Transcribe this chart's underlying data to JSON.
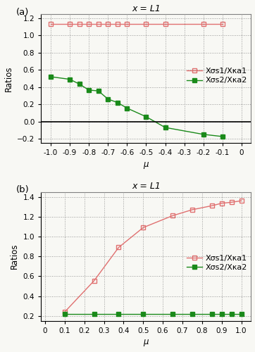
{
  "title": "x = L1",
  "legend_labels": [
    "Xσs1/Xκa1",
    "Xσs2/Xκa2"
  ],
  "ax1": {
    "mu": [
      -1.0,
      -0.9,
      -0.85,
      -0.8,
      -0.75,
      -0.7,
      -0.65,
      -0.6,
      -0.5,
      -0.4,
      -0.2,
      -0.1
    ],
    "red_y": [
      1.13,
      1.13,
      1.13,
      1.13,
      1.13,
      1.13,
      1.13,
      1.13,
      1.13,
      1.13,
      1.13,
      1.13
    ],
    "green_y": [
      0.52,
      0.49,
      0.435,
      0.365,
      0.355,
      0.26,
      0.22,
      0.155,
      0.055,
      -0.07,
      -0.15,
      -0.175
    ],
    "xlim": [
      -1.05,
      0.05
    ],
    "ylim": [
      -0.25,
      1.25
    ],
    "yticks": [
      -0.2,
      0.0,
      0.2,
      0.4,
      0.6,
      0.8,
      1.0,
      1.2
    ],
    "xticks": [
      -1.0,
      -0.9,
      -0.8,
      -0.7,
      -0.6,
      -0.5,
      -0.4,
      -0.3,
      -0.2,
      -0.1,
      0.0
    ]
  },
  "ax2": {
    "mu": [
      0.1,
      0.25,
      0.375,
      0.5,
      0.65,
      0.75,
      0.85,
      0.9,
      0.95,
      1.0
    ],
    "red_y": [
      0.24,
      0.555,
      0.89,
      1.09,
      1.21,
      1.27,
      1.31,
      1.335,
      1.345,
      1.36
    ],
    "green_y": [
      0.22,
      0.22,
      0.22,
      0.22,
      0.22,
      0.22,
      0.22,
      0.22,
      0.22,
      0.22
    ],
    "xlim": [
      -0.02,
      1.05
    ],
    "ylim": [
      0.15,
      1.45
    ],
    "yticks": [
      0.2,
      0.4,
      0.6,
      0.8,
      1.0,
      1.2,
      1.4
    ],
    "xticks": [
      0.0,
      0.1,
      0.2,
      0.3,
      0.4,
      0.5,
      0.6,
      0.7,
      0.8,
      0.9,
      1.0
    ]
  },
  "red_color": "#e07070",
  "green_color": "#1a8a1a",
  "bg_color": "#f8f8f4",
  "title_fontsize": 9,
  "label_fontsize": 8.5,
  "tick_fontsize": 7.5,
  "legend_fontsize": 8
}
